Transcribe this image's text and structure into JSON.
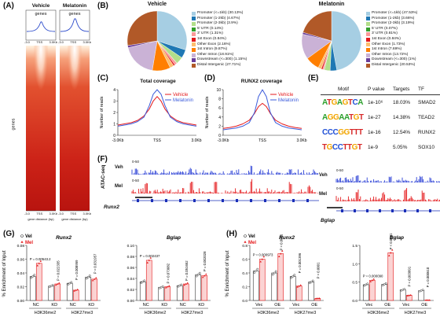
{
  "panels": {
    "A": "(A)",
    "B": "(B)",
    "C": "(C)",
    "D": "(D)",
    "E": "(E)",
    "F": "(F)",
    "G": "(G)",
    "H": "(H)"
  },
  "panel_a": {
    "col_titles": [
      "Vehicle",
      "Melatonin"
    ],
    "profile_label": "genes",
    "profile_ticks": [
      "-3.0",
      "TSS",
      "3.0Kb"
    ],
    "heatmap_ticks": [
      "-3.0",
      "TSS",
      "3.0Kb"
    ],
    "y_label": "genes",
    "x_label": "gene distance (bp)"
  },
  "panel_b": {
    "vehicle": {
      "title": "Vehicle",
      "legend": [
        "Promoter (<=1kb) (30.13%)",
        "Promoter (1-2kb) (4.67%)",
        "Promoter (2-3kb) (3.9%)",
        "5' UTR (0.14%)",
        "3' UTR (1.31%)",
        "1st Exon (0.84%)",
        "Other Exon (2.16%)",
        "1st Intron (9.87%)",
        "Other Intron (18.91%)",
        "Downstream (<=300) (1.15%)",
        "Distal Intergenic (27.71%)"
      ]
    },
    "melatonin": {
      "title": "Melatonin",
      "legend": [
        "Promoter (<=1kb) (47.53%)",
        "Promoter (1-2kb) (3.66%)",
        "Promoter (2-3kb) (3.19%)",
        "5' UTR (0.07%)",
        "3' UTR (0.81%)",
        "1st Exon (0.84%)",
        "Other Exon (1.73%)",
        "1st Intron (7.69%)",
        "Other Intron (13.72%)",
        "Downstream (<=300) (1%)",
        "Distal Intergenic (20.53%)"
      ]
    },
    "colors": [
      "#a6cee3",
      "#1f78b4",
      "#b2df8a",
      "#33a02c",
      "#fb9a99",
      "#e31a1c",
      "#fdbf6f",
      "#ff7f00",
      "#cab2d6",
      "#6a3d9a",
      "#b15928"
    ]
  },
  "panel_c": {
    "title": "Total coverage",
    "ylabel": "Number of reads",
    "xticks": [
      "-3.0Kb",
      "TSS",
      "3.0Kb"
    ],
    "yticks": [
      "0",
      "1",
      "2",
      "3",
      "4"
    ],
    "legend": [
      "Vehicle",
      "Melatonin"
    ]
  },
  "panel_d": {
    "title": "RUNX2 coverage",
    "ylabel": "Number of reads",
    "xticks": [
      "-3.0Kb",
      "TSS",
      "3.0Kb"
    ],
    "yticks": [
      "0",
      "2",
      "4",
      "6",
      "8",
      "10"
    ],
    "legend": [
      "Vehicle",
      "Melatonin"
    ]
  },
  "panel_e": {
    "headers": [
      "Motif",
      "P value",
      "Targets",
      "TF"
    ],
    "rows": [
      {
        "motif": "ATGAGTCA",
        "p": "1e-10⁶",
        "targets": "18.03%",
        "tf": "SMAD2"
      },
      {
        "motif": "AGGAATGT",
        "p": "1e-27",
        "targets": "14.38%",
        "tf": "TEAD2"
      },
      {
        "motif": "CCCGGTTT",
        "p": "1e-16",
        "targets": "12.54%",
        "tf": "RUNX2"
      },
      {
        "motif": "TGCCTTGT",
        "p": "1e-9",
        "targets": "5.05%",
        "tf": "SOX10"
      }
    ]
  },
  "panel_f": {
    "assay": "ATAC-seq",
    "left_tracks": [
      "Veh",
      "Mel"
    ],
    "right_tracks": [
      "Veh",
      "Mel"
    ],
    "scale": "0-50",
    "genes": [
      "Runx2",
      "Bglap"
    ]
  },
  "panel_g": {
    "ylabel": "% Enrichment of Input",
    "legend": [
      "Vel",
      "Mel"
    ],
    "runx2": {
      "title": "Runx2",
      "yticks": [
        "0.00",
        "0.02",
        "0.04",
        "0.06",
        "0.08"
      ],
      "groups": [
        "NC",
        "KD",
        "NC",
        "KD"
      ],
      "marks": [
        "H3K36me2",
        "H3K27me3"
      ],
      "pvals": [
        "P = 0.00543.2",
        "P = 0.022335",
        "P = 0.008959",
        "P = 0.031957"
      ]
    },
    "bglap": {
      "title": "Bglap",
      "yticks": [
        "0.00",
        "0.02",
        "0.04",
        "0.06",
        "0.08",
        "0.10"
      ],
      "groups": [
        "NC",
        "KD",
        "NC",
        "KD"
      ],
      "marks": [
        "H3K36me2",
        "H3K27me3"
      ],
      "pvals": [
        "P = 0.002437",
        "P = 0.073082",
        "P = 0.051652",
        "P = 0.002028"
      ]
    }
  },
  "panel_h": {
    "ylabel": "% Enrichment of Input",
    "legend": [
      "Vel",
      "Mel"
    ],
    "runx2": {
      "title": "Runx2",
      "yticks": [
        "0.0",
        "0.2",
        "0.4",
        "0.6",
        "0.8"
      ],
      "groups": [
        "Vec",
        "OE",
        "Vec",
        "OE"
      ],
      "marks": [
        "H3K36me2",
        "H3K27me3"
      ],
      "pvals": [
        "P = 0.000973",
        "P < 0.0001",
        "P = 0.001396",
        "P < 0.0001"
      ]
    },
    "bglap": {
      "title": "Bglap",
      "yticks": [
        "0.0",
        "0.5",
        "1.0",
        "1.5"
      ],
      "groups": [
        "Vec",
        "OE",
        "Vec",
        "OE"
      ],
      "marks": [
        "H3K36me2",
        "H3K27me3"
      ],
      "pvals": [
        "P = 0.000090",
        "P < 0.0001",
        "P = 0.003891",
        "P = 0.000610"
      ]
    }
  },
  "chart_data": [
    {
      "type": "pie",
      "title": "Vehicle",
      "categories": [
        "Promoter (<=1kb)",
        "Promoter (1-2kb)",
        "Promoter (2-3kb)",
        "5' UTR",
        "3' UTR",
        "1st Exon",
        "Other Exon",
        "1st Intron",
        "Other Intron",
        "Downstream (<=300)",
        "Distal Intergenic"
      ],
      "values": [
        30.13,
        4.67,
        3.9,
        0.14,
        1.31,
        0.84,
        2.16,
        9.87,
        18.91,
        1.15,
        27.71
      ]
    },
    {
      "type": "pie",
      "title": "Melatonin",
      "categories": [
        "Promoter (<=1kb)",
        "Promoter (1-2kb)",
        "Promoter (2-3kb)",
        "5' UTR",
        "3' UTR",
        "1st Exon",
        "Other Exon",
        "1st Intron",
        "Other Intron",
        "Downstream (<=300)",
        "Distal Intergenic"
      ],
      "values": [
        47.53,
        3.66,
        3.19,
        0.07,
        0.81,
        0.84,
        1.73,
        7.69,
        13.72,
        1,
        20.53
      ]
    },
    {
      "type": "line",
      "title": "Total coverage",
      "xlabel": "",
      "ylabel": "Number of reads",
      "xticks": [
        "-3.0Kb",
        "TSS",
        "3.0Kb"
      ],
      "x": [
        -3,
        -2.5,
        -2,
        -1.5,
        -1,
        -0.6,
        -0.3,
        0,
        0.3,
        0.6,
        1,
        1.5,
        2,
        2.5,
        3
      ],
      "ylim": [
        0,
        4
      ],
      "series": [
        {
          "name": "Vehicle",
          "color": "#e41a1c",
          "values": [
            0.9,
            1.0,
            1.1,
            1.3,
            1.7,
            2.3,
            3.0,
            3.4,
            3.0,
            2.3,
            1.7,
            1.3,
            1.1,
            1.0,
            0.9
          ]
        },
        {
          "name": "Melatonin",
          "color": "#3b5bdb",
          "values": [
            0.8,
            0.9,
            1.0,
            1.2,
            1.6,
            2.6,
            3.6,
            4.0,
            3.6,
            2.6,
            1.6,
            1.2,
            1.0,
            0.9,
            0.8
          ]
        }
      ]
    },
    {
      "type": "line",
      "title": "RUNX2 coverage",
      "xlabel": "",
      "ylabel": "Number of reads",
      "xticks": [
        "-3.0Kb",
        "TSS",
        "3.0Kb"
      ],
      "x": [
        -3,
        -2.5,
        -2,
        -1.5,
        -1,
        -0.6,
        -0.3,
        0,
        0.3,
        0.6,
        1,
        1.5,
        2,
        2.5,
        3
      ],
      "ylim": [
        0,
        10
      ],
      "series": [
        {
          "name": "Vehicle",
          "color": "#e41a1c",
          "values": [
            1.5,
            1.7,
            2.0,
            2.5,
            3.3,
            4.8,
            6.3,
            7.0,
            6.3,
            4.8,
            3.3,
            2.5,
            2.0,
            1.7,
            1.5
          ]
        },
        {
          "name": "Melatonin",
          "color": "#3b5bdb",
          "values": [
            1.2,
            1.4,
            1.6,
            2.0,
            2.8,
            5.0,
            8.5,
            10.0,
            8.5,
            5.0,
            2.8,
            2.0,
            1.6,
            1.4,
            1.2
          ]
        }
      ]
    },
    {
      "type": "bar",
      "title": "Runx2",
      "ylabel": "% Enrichment of Input",
      "categories": [
        "H3K36me2 NC",
        "H3K36me2 KD",
        "H3K27me3 NC",
        "H3K27me3 KD"
      ],
      "ylim": [
        0,
        0.08
      ],
      "series": [
        {
          "name": "Vel",
          "values": [
            0.035,
            0.021,
            0.025,
            0.034
          ]
        },
        {
          "name": "Mel",
          "values": [
            0.054,
            0.024,
            0.015,
            0.031
          ]
        }
      ]
    },
    {
      "type": "bar",
      "title": "Bglap",
      "ylabel": "% Enrichment of Input",
      "categories": [
        "H3K36me2 NC",
        "H3K36me2 KD",
        "H3K27me3 NC",
        "H3K27me3 KD"
      ],
      "ylim": [
        0,
        0.1
      ],
      "series": [
        {
          "name": "Vel",
          "values": [
            0.034,
            0.024,
            0.027,
            0.047
          ]
        },
        {
          "name": "Mel",
          "values": [
            0.073,
            0.025,
            0.03,
            0.045
          ]
        }
      ]
    },
    {
      "type": "bar",
      "title": "Runx2",
      "ylabel": "% Enrichment of Input",
      "categories": [
        "H3K36me2 Vec",
        "H3K36me2 OE",
        "H3K27me3 Vec",
        "H3K27me3 OE"
      ],
      "ylim": [
        0,
        0.8
      ],
      "series": [
        {
          "name": "Vel",
          "values": [
            0.43,
            0.4,
            0.35,
            0.27
          ]
        },
        {
          "name": "Mel",
          "values": [
            0.6,
            0.68,
            0.21,
            0.03
          ]
        }
      ]
    },
    {
      "type": "bar",
      "title": "Bglap",
      "ylabel": "% Enrichment of Input",
      "categories": [
        "H3K36me2 Vec",
        "H3K36me2 OE",
        "H3K27me3 Vec",
        "H3K27me3 OE"
      ],
      "ylim": [
        0,
        1.5
      ],
      "series": [
        {
          "name": "Vel",
          "values": [
            0.43,
            0.44,
            0.29,
            0.27
          ]
        },
        {
          "name": "Mel",
          "values": [
            0.55,
            1.3,
            0.14,
            0.01
          ]
        }
      ]
    }
  ]
}
